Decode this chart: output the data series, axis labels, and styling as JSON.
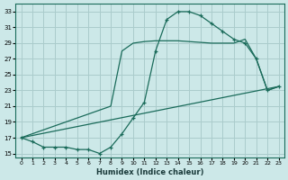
{
  "xlabel": "Humidex (Indice chaleur)",
  "bg_color": "#cce8e8",
  "grid_color": "#aacccc",
  "line_color": "#1a6b5a",
  "xlim": [
    -0.5,
    23.5
  ],
  "ylim": [
    14.5,
    34.0
  ],
  "xticks": [
    0,
    1,
    2,
    3,
    4,
    5,
    6,
    7,
    8,
    9,
    10,
    11,
    12,
    13,
    14,
    15,
    16,
    17,
    18,
    19,
    20,
    21,
    22,
    23
  ],
  "yticks": [
    15,
    17,
    19,
    21,
    23,
    25,
    27,
    29,
    31,
    33
  ],
  "curve1_x": [
    0,
    1,
    2,
    3,
    4,
    5,
    6,
    7,
    8,
    9,
    10,
    11,
    12,
    13,
    14,
    15,
    16,
    17,
    18,
    19,
    20,
    21,
    22,
    23
  ],
  "curve1_y": [
    17,
    16.5,
    15.8,
    15.8,
    15.8,
    15.5,
    15.5,
    15.0,
    15.8,
    17.5,
    19.5,
    21.5,
    28.0,
    32.0,
    33.0,
    33.0,
    32.5,
    31.5,
    30.5,
    29.5,
    29.0,
    27.0,
    23.0,
    23.5
  ],
  "curve2_x": [
    0,
    23
  ],
  "curve2_y": [
    17,
    23.5
  ],
  "curve3_x": [
    0,
    8,
    9,
    10,
    11,
    12,
    13,
    14,
    15,
    16,
    17,
    18,
    19,
    20,
    21,
    22,
    23
  ],
  "curve3_y": [
    17,
    21.0,
    28.0,
    29.0,
    29.2,
    29.3,
    29.3,
    29.3,
    29.2,
    29.1,
    29.0,
    29.0,
    29.0,
    29.5,
    27.0,
    23.0,
    23.5
  ]
}
